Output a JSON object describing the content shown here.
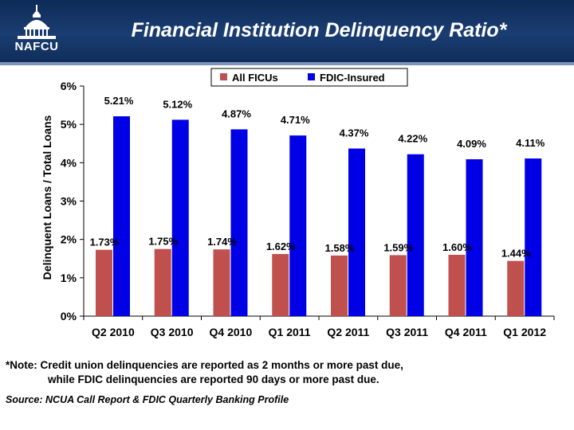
{
  "header": {
    "logo_text": "NAFCU",
    "title": "Financial Institution Delinquency Ratio*"
  },
  "chart_data": {
    "type": "bar",
    "categories": [
      "Q2 2010",
      "Q3 2010",
      "Q4 2010",
      "Q1 2011",
      "Q2 2011",
      "Q3 2011",
      "Q4 2011",
      "Q1 2012"
    ],
    "series": [
      {
        "name": "All FICUs",
        "values": [
          1.73,
          1.75,
          1.74,
          1.62,
          1.58,
          1.59,
          1.6,
          1.44
        ],
        "labels": [
          "1.73%",
          "1.75%",
          "1.74%",
          "1.62%",
          "1.58%",
          "1.59%",
          "1.60%",
          "1.44%"
        ],
        "color": "#c0504d"
      },
      {
        "name": "FDIC-Insured",
        "values": [
          5.21,
          5.12,
          4.87,
          4.71,
          4.37,
          4.22,
          4.09,
          4.11
        ],
        "labels": [
          "5.21%",
          "5.12%",
          "4.87%",
          "4.71%",
          "4.37%",
          "4.22%",
          "4.09%",
          "4.11%"
        ],
        "color": "#0000e6"
      }
    ],
    "ylabel": "Delinquent Loans / Total Loans",
    "xlabel": "",
    "ylim": [
      0,
      6
    ],
    "yticks": [
      "0%",
      "1%",
      "2%",
      "3%",
      "4%",
      "5%",
      "6%"
    ],
    "grid": false,
    "legend_position": "top-right"
  },
  "footnote": {
    "line1": "*Note: Credit union delinquencies are reported as 2 months or more past due,",
    "line2": "while FDIC delinquencies are reported 90 days or more past due."
  },
  "source": "Source: NCUA Call Report & FDIC Quarterly Banking Profile"
}
